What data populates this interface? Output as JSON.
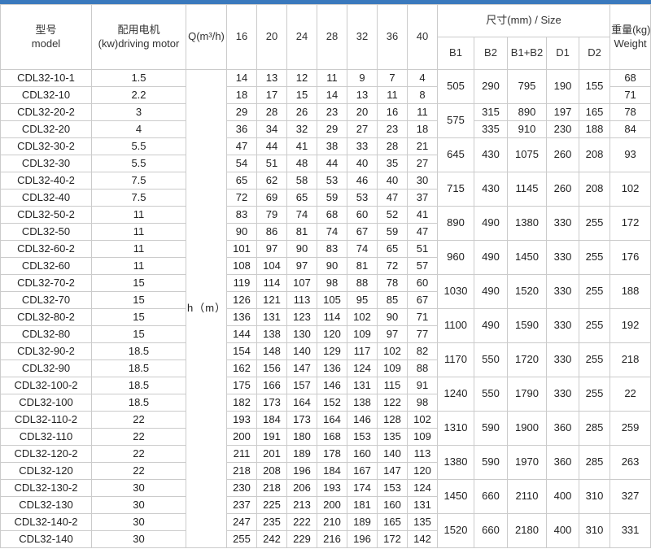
{
  "accent_color": "#3a79bd",
  "border_color": "#cbcbcb",
  "header": {
    "model_zh": "型号",
    "model_en": "model",
    "motor_zh": "配用电机",
    "motor_en": "(kw)driving motor",
    "q_label": "Q(m³/h)",
    "flows": [
      "16",
      "20",
      "24",
      "28",
      "32",
      "36",
      "40"
    ],
    "size_label": "尺寸(mm) / Size",
    "size_cols": [
      "B1",
      "B2",
      "B1+B2",
      "D1",
      "D2"
    ],
    "weight_zh": "重量(kg)",
    "weight_en": "Weight"
  },
  "body": {
    "head_unit_label": "h（m）"
  },
  "rows": [
    {
      "model": "CDL32-10-1",
      "power": "1.5",
      "flows": [
        "14",
        "13",
        "12",
        "11",
        "9",
        "7",
        "4"
      ]
    },
    {
      "model": "CDL32-10",
      "power": "2.2",
      "flows": [
        "18",
        "17",
        "15",
        "14",
        "13",
        "11",
        "8"
      ]
    },
    {
      "model": "CDL32-20-2",
      "power": "3",
      "flows": [
        "29",
        "28",
        "26",
        "23",
        "20",
        "16",
        "11"
      ]
    },
    {
      "model": "CDL32-20",
      "power": "4",
      "flows": [
        "36",
        "34",
        "32",
        "29",
        "27",
        "23",
        "18"
      ]
    },
    {
      "model": "CDL32-30-2",
      "power": "5.5",
      "flows": [
        "47",
        "44",
        "41",
        "38",
        "33",
        "28",
        "21"
      ]
    },
    {
      "model": "CDL32-30",
      "power": "5.5",
      "flows": [
        "54",
        "51",
        "48",
        "44",
        "40",
        "35",
        "27"
      ]
    },
    {
      "model": "CDL32-40-2",
      "power": "7.5",
      "flows": [
        "65",
        "62",
        "58",
        "53",
        "46",
        "40",
        "30"
      ]
    },
    {
      "model": "CDL32-40",
      "power": "7.5",
      "flows": [
        "72",
        "69",
        "65",
        "59",
        "53",
        "47",
        "37"
      ]
    },
    {
      "model": "CDL32-50-2",
      "power": "11",
      "flows": [
        "83",
        "79",
        "74",
        "68",
        "60",
        "52",
        "41"
      ]
    },
    {
      "model": "CDL32-50",
      "power": "11",
      "flows": [
        "90",
        "86",
        "81",
        "74",
        "67",
        "59",
        "47"
      ]
    },
    {
      "model": "CDL32-60-2",
      "power": "11",
      "flows": [
        "101",
        "97",
        "90",
        "83",
        "74",
        "65",
        "51"
      ]
    },
    {
      "model": "CDL32-60",
      "power": "11",
      "flows": [
        "108",
        "104",
        "97",
        "90",
        "81",
        "72",
        "57"
      ]
    },
    {
      "model": "CDL32-70-2",
      "power": "15",
      "flows": [
        "119",
        "114",
        "107",
        "98",
        "88",
        "78",
        "60"
      ]
    },
    {
      "model": "CDL32-70",
      "power": "15",
      "flows": [
        "126",
        "121",
        "113",
        "105",
        "95",
        "85",
        "67"
      ]
    },
    {
      "model": "CDL32-80-2",
      "power": "15",
      "flows": [
        "136",
        "131",
        "123",
        "114",
        "102",
        "90",
        "71"
      ]
    },
    {
      "model": "CDL32-80",
      "power": "15",
      "flows": [
        "144",
        "138",
        "130",
        "120",
        "109",
        "97",
        "77"
      ]
    },
    {
      "model": "CDL32-90-2",
      "power": "18.5",
      "flows": [
        "154",
        "148",
        "140",
        "129",
        "117",
        "102",
        "82"
      ]
    },
    {
      "model": "CDL32-90",
      "power": "18.5",
      "flows": [
        "162",
        "156",
        "147",
        "136",
        "124",
        "109",
        "88"
      ]
    },
    {
      "model": "CDL32-100-2",
      "power": "18.5",
      "flows": [
        "175",
        "166",
        "157",
        "146",
        "131",
        "115",
        "91"
      ]
    },
    {
      "model": "CDL32-100",
      "power": "18.5",
      "flows": [
        "182",
        "173",
        "164",
        "152",
        "138",
        "122",
        "98"
      ]
    },
    {
      "model": "CDL32-110-2",
      "power": "22",
      "flows": [
        "193",
        "184",
        "173",
        "164",
        "146",
        "128",
        "102"
      ]
    },
    {
      "model": "CDL32-110",
      "power": "22",
      "flows": [
        "200",
        "191",
        "180",
        "168",
        "153",
        "135",
        "109"
      ]
    },
    {
      "model": "CDL32-120-2",
      "power": "22",
      "flows": [
        "211",
        "201",
        "189",
        "178",
        "160",
        "140",
        "113"
      ]
    },
    {
      "model": "CDL32-120",
      "power": "22",
      "flows": [
        "218",
        "208",
        "196",
        "184",
        "167",
        "147",
        "120"
      ]
    },
    {
      "model": "CDL32-130-2",
      "power": "30",
      "flows": [
        "230",
        "218",
        "206",
        "193",
        "174",
        "153",
        "124"
      ]
    },
    {
      "model": "CDL32-130",
      "power": "30",
      "flows": [
        "237",
        "225",
        "213",
        "200",
        "181",
        "160",
        "131"
      ]
    },
    {
      "model": "CDL32-140-2",
      "power": "30",
      "flows": [
        "247",
        "235",
        "222",
        "210",
        "189",
        "165",
        "135"
      ]
    },
    {
      "model": "CDL32-140",
      "power": "30",
      "flows": [
        "255",
        "242",
        "229",
        "216",
        "196",
        "172",
        "142"
      ]
    }
  ],
  "size_groups": [
    {
      "b1": "505",
      "dims": [
        {
          "span": 2,
          "b2": "290",
          "b1b2": "795",
          "d1": "190",
          "d2": "155"
        }
      ],
      "weights": [
        {
          "span": 1,
          "value": "68"
        },
        {
          "span": 1,
          "value": "71"
        }
      ]
    },
    {
      "b1": "575",
      "dims": [
        {
          "span": 1,
          "b2": "315",
          "b1b2": "890",
          "d1": "197",
          "d2": "165"
        },
        {
          "span": 1,
          "b2": "335",
          "b1b2": "910",
          "d1": "230",
          "d2": "188"
        }
      ],
      "weights": [
        {
          "span": 1,
          "value": "78"
        },
        {
          "span": 1,
          "value": "84"
        }
      ]
    },
    {
      "b1": "645",
      "dims": [
        {
          "span": 2,
          "b2": "430",
          "b1b2": "1075",
          "d1": "260",
          "d2": "208"
        }
      ],
      "weights": [
        {
          "span": 2,
          "value": "93"
        }
      ]
    },
    {
      "b1": "715",
      "dims": [
        {
          "span": 2,
          "b2": "430",
          "b1b2": "1145",
          "d1": "260",
          "d2": "208"
        }
      ],
      "weights": [
        {
          "span": 2,
          "value": "102"
        }
      ]
    },
    {
      "b1": "890",
      "dims": [
        {
          "span": 2,
          "b2": "490",
          "b1b2": "1380",
          "d1": "330",
          "d2": "255"
        }
      ],
      "weights": [
        {
          "span": 2,
          "value": "172"
        }
      ]
    },
    {
      "b1": "960",
      "dims": [
        {
          "span": 2,
          "b2": "490",
          "b1b2": "1450",
          "d1": "330",
          "d2": "255"
        }
      ],
      "weights": [
        {
          "span": 2,
          "value": "176"
        }
      ]
    },
    {
      "b1": "1030",
      "dims": [
        {
          "span": 2,
          "b2": "490",
          "b1b2": "1520",
          "d1": "330",
          "d2": "255"
        }
      ],
      "weights": [
        {
          "span": 2,
          "value": "188"
        }
      ]
    },
    {
      "b1": "1100",
      "dims": [
        {
          "span": 2,
          "b2": "490",
          "b1b2": "1590",
          "d1": "330",
          "d2": "255"
        }
      ],
      "weights": [
        {
          "span": 2,
          "value": "192"
        }
      ]
    },
    {
      "b1": "1170",
      "dims": [
        {
          "span": 2,
          "b2": "550",
          "b1b2": "1720",
          "d1": "330",
          "d2": "255"
        }
      ],
      "weights": [
        {
          "span": 2,
          "value": "218"
        }
      ]
    },
    {
      "b1": "1240",
      "dims": [
        {
          "span": 2,
          "b2": "550",
          "b1b2": "1790",
          "d1": "330",
          "d2": "255"
        }
      ],
      "weights": [
        {
          "span": 2,
          "value": "22"
        }
      ]
    },
    {
      "b1": "1310",
      "dims": [
        {
          "span": 2,
          "b2": "590",
          "b1b2": "1900",
          "d1": "360",
          "d2": "285"
        }
      ],
      "weights": [
        {
          "span": 2,
          "value": "259"
        }
      ]
    },
    {
      "b1": "1380",
      "dims": [
        {
          "span": 2,
          "b2": "590",
          "b1b2": "1970",
          "d1": "360",
          "d2": "285"
        }
      ],
      "weights": [
        {
          "span": 2,
          "value": "263"
        }
      ]
    },
    {
      "b1": "1450",
      "dims": [
        {
          "span": 2,
          "b2": "660",
          "b1b2": "2110",
          "d1": "400",
          "d2": "310"
        }
      ],
      "weights": [
        {
          "span": 2,
          "value": "327"
        }
      ]
    },
    {
      "b1": "1520",
      "dims": [
        {
          "span": 2,
          "b2": "660",
          "b1b2": "2180",
          "d1": "400",
          "d2": "310"
        }
      ],
      "weights": [
        {
          "span": 2,
          "value": "331"
        }
      ]
    }
  ]
}
